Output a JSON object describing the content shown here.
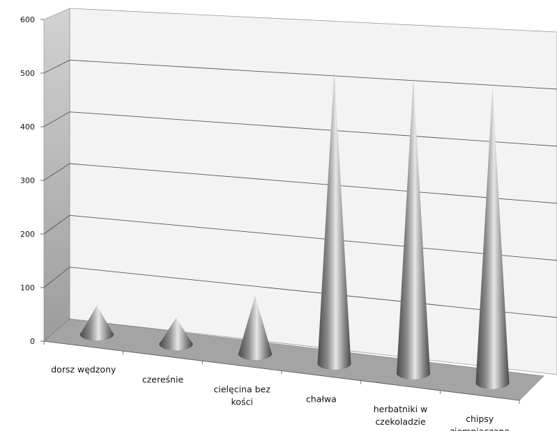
{
  "chart_data": {
    "type": "bar",
    "bar_shape": "cone",
    "view": "3d",
    "categories": [
      "dorsz wędzony",
      "czereśnie",
      "cielęcina bez kości",
      "chałwa",
      "herbatniki w czekoladzie",
      "chipsy ziemniaczane"
    ],
    "category_lines": [
      [
        "dorsz wędzony"
      ],
      [
        "czereśnie"
      ],
      [
        "cielęcina bez",
        "kości"
      ],
      [
        "chałwa"
      ],
      [
        "herbatniki w",
        "czekoladzie"
      ],
      [
        "chipsy",
        "ziemniaczane"
      ]
    ],
    "values": [
      55,
      50,
      110,
      555,
      560,
      560
    ],
    "ylim": [
      0,
      600
    ],
    "yticks": [
      "0",
      "100",
      "200",
      "300",
      "400",
      "500",
      "600"
    ],
    "grid": true,
    "legend": "none",
    "colors": {
      "cone_dark": "#4a4a4a",
      "cone_mid": "#8a8a8a",
      "cone_light": "#e6e6e6",
      "back_wall": "#f3f3f3",
      "side_wall_top": "#d2d2d2",
      "side_wall_bottom": "#9c9c9c",
      "floor": "#a4a4a4",
      "gridline": "#555555"
    }
  }
}
